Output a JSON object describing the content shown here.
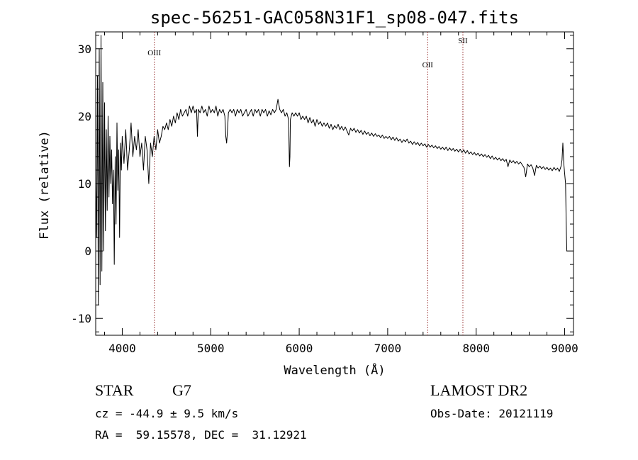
{
  "chart_data": {
    "type": "line",
    "title": "spec-56251-GAC058N31F1_sp08-047.fits",
    "xlabel": "Wavelength (Å)",
    "ylabel": "Flux (relative)",
    "xlim": [
      3700,
      9100
    ],
    "ylim": [
      -12.5,
      32.5
    ],
    "xticks": [
      4000,
      5000,
      6000,
      7000,
      8000,
      9000
    ],
    "yticks": [
      -10,
      0,
      10,
      20,
      30
    ],
    "grid": false,
    "series": [
      {
        "values": [
          [
            3700,
            10
          ],
          [
            3710,
            2
          ],
          [
            3720,
            26
          ],
          [
            3730,
            -8
          ],
          [
            3740,
            30
          ],
          [
            3750,
            -5
          ],
          [
            3760,
            32
          ],
          [
            3770,
            -3
          ],
          [
            3780,
            25
          ],
          [
            3790,
            0
          ],
          [
            3800,
            22
          ],
          [
            3810,
            3
          ],
          [
            3820,
            18
          ],
          [
            3830,
            6
          ],
          [
            3840,
            20
          ],
          [
            3850,
            8
          ],
          [
            3860,
            17
          ],
          [
            3870,
            10
          ],
          [
            3880,
            15
          ],
          [
            3890,
            7
          ],
          [
            3900,
            12
          ],
          [
            3910,
            -2
          ],
          [
            3920,
            14
          ],
          [
            3930,
            4
          ],
          [
            3940,
            19
          ],
          [
            3950,
            9
          ],
          [
            3960,
            15
          ],
          [
            3970,
            2
          ],
          [
            3980,
            16
          ],
          [
            3990,
            12
          ],
          [
            4000,
            17
          ],
          [
            4020,
            13
          ],
          [
            4040,
            18
          ],
          [
            4060,
            12
          ],
          [
            4080,
            15
          ],
          [
            4100,
            19
          ],
          [
            4120,
            14
          ],
          [
            4140,
            17
          ],
          [
            4160,
            15
          ],
          [
            4180,
            18
          ],
          [
            4200,
            14
          ],
          [
            4220,
            16
          ],
          [
            4240,
            12
          ],
          [
            4260,
            17
          ],
          [
            4280,
            15
          ],
          [
            4300,
            10
          ],
          [
            4320,
            16
          ],
          [
            4340,
            14
          ],
          [
            4360,
            17
          ],
          [
            4380,
            15
          ],
          [
            4400,
            18
          ],
          [
            4420,
            16
          ],
          [
            4440,
            17
          ],
          [
            4460,
            18.5
          ],
          [
            4480,
            18
          ],
          [
            4500,
            19
          ],
          [
            4520,
            18
          ],
          [
            4540,
            19.5
          ],
          [
            4560,
            18.5
          ],
          [
            4580,
            20
          ],
          [
            4600,
            19
          ],
          [
            4620,
            20.5
          ],
          [
            4640,
            19.5
          ],
          [
            4660,
            21
          ],
          [
            4680,
            20
          ],
          [
            4700,
            20.5
          ],
          [
            4720,
            21
          ],
          [
            4740,
            20
          ],
          [
            4760,
            21.5
          ],
          [
            4780,
            20.5
          ],
          [
            4800,
            21.5
          ],
          [
            4820,
            20.5
          ],
          [
            4840,
            21
          ],
          [
            4850,
            17
          ],
          [
            4860,
            21
          ],
          [
            4880,
            20.5
          ],
          [
            4900,
            21.5
          ],
          [
            4920,
            20.5
          ],
          [
            4940,
            21
          ],
          [
            4960,
            20
          ],
          [
            4980,
            21.5
          ],
          [
            5000,
            20.5
          ],
          [
            5020,
            21
          ],
          [
            5040,
            20.5
          ],
          [
            5060,
            21.5
          ],
          [
            5080,
            20
          ],
          [
            5100,
            21
          ],
          [
            5120,
            20.5
          ],
          [
            5140,
            21
          ],
          [
            5160,
            20
          ],
          [
            5170,
            17
          ],
          [
            5180,
            16
          ],
          [
            5190,
            18
          ],
          [
            5200,
            20.5
          ],
          [
            5220,
            21
          ],
          [
            5240,
            20.5
          ],
          [
            5260,
            21
          ],
          [
            5280,
            20
          ],
          [
            5300,
            21
          ],
          [
            5320,
            20.5
          ],
          [
            5340,
            21
          ],
          [
            5360,
            20
          ],
          [
            5380,
            20.5
          ],
          [
            5400,
            21
          ],
          [
            5420,
            20
          ],
          [
            5440,
            20.5
          ],
          [
            5460,
            21
          ],
          [
            5480,
            20
          ],
          [
            5500,
            21
          ],
          [
            5520,
            20.5
          ],
          [
            5540,
            21
          ],
          [
            5560,
            20
          ],
          [
            5580,
            21
          ],
          [
            5600,
            20.5
          ],
          [
            5620,
            21
          ],
          [
            5640,
            20
          ],
          [
            5660,
            20.8
          ],
          [
            5680,
            20.2
          ],
          [
            5700,
            21
          ],
          [
            5720,
            20.5
          ],
          [
            5740,
            21
          ],
          [
            5760,
            22.5
          ],
          [
            5780,
            21
          ],
          [
            5800,
            20.5
          ],
          [
            5820,
            21
          ],
          [
            5840,
            20
          ],
          [
            5860,
            20.5
          ],
          [
            5880,
            19.5
          ],
          [
            5890,
            12.5
          ],
          [
            5895,
            14
          ],
          [
            5900,
            19.5
          ],
          [
            5920,
            20.5
          ],
          [
            5940,
            20
          ],
          [
            5960,
            20.5
          ],
          [
            5980,
            20
          ],
          [
            6000,
            20.5
          ],
          [
            6020,
            19.5
          ],
          [
            6040,
            20
          ],
          [
            6060,
            19.5
          ],
          [
            6080,
            20
          ],
          [
            6100,
            19
          ],
          [
            6120,
            19.8
          ],
          [
            6140,
            19
          ],
          [
            6160,
            19.5
          ],
          [
            6180,
            18.5
          ],
          [
            6200,
            19.5
          ],
          [
            6220,
            18.8
          ],
          [
            6240,
            19.2
          ],
          [
            6260,
            18.5
          ],
          [
            6280,
            19
          ],
          [
            6300,
            18.5
          ],
          [
            6320,
            19
          ],
          [
            6340,
            18.2
          ],
          [
            6360,
            18.8
          ],
          [
            6380,
            18
          ],
          [
            6400,
            18.6
          ],
          [
            6420,
            18.2
          ],
          [
            6440,
            18.8
          ],
          [
            6460,
            18
          ],
          [
            6480,
            18.5
          ],
          [
            6500,
            17.9
          ],
          [
            6520,
            18.4
          ],
          [
            6540,
            17.8
          ],
          [
            6560,
            17.2
          ],
          [
            6580,
            18.2
          ],
          [
            6600,
            17.8
          ],
          [
            6620,
            18.2
          ],
          [
            6640,
            17.6
          ],
          [
            6660,
            18
          ],
          [
            6680,
            17.5
          ],
          [
            6700,
            17.9
          ],
          [
            6720,
            17.3
          ],
          [
            6740,
            17.8
          ],
          [
            6760,
            17.3
          ],
          [
            6780,
            17.6
          ],
          [
            6800,
            17.1
          ],
          [
            6820,
            17.5
          ],
          [
            6840,
            17
          ],
          [
            6860,
            17.4
          ],
          [
            6880,
            17
          ],
          [
            6900,
            17.2
          ],
          [
            6920,
            16.8
          ],
          [
            6940,
            17.2
          ],
          [
            6960,
            16.7
          ],
          [
            6980,
            17
          ],
          [
            7000,
            16.7
          ],
          [
            7020,
            17
          ],
          [
            7040,
            16.5
          ],
          [
            7060,
            16.9
          ],
          [
            7080,
            16.4
          ],
          [
            7100,
            16.8
          ],
          [
            7120,
            16.3
          ],
          [
            7140,
            16.6
          ],
          [
            7160,
            16.1
          ],
          [
            7180,
            16.5
          ],
          [
            7200,
            16.2
          ],
          [
            7220,
            16.6
          ],
          [
            7240,
            16
          ],
          [
            7260,
            16.3
          ],
          [
            7280,
            15.8
          ],
          [
            7300,
            16.2
          ],
          [
            7320,
            15.8
          ],
          [
            7340,
            16.1
          ],
          [
            7360,
            15.6
          ],
          [
            7380,
            16
          ],
          [
            7400,
            15.6
          ],
          [
            7420,
            15.9
          ],
          [
            7440,
            15.4
          ],
          [
            7460,
            15.8
          ],
          [
            7480,
            15.4
          ],
          [
            7500,
            15.7
          ],
          [
            7520,
            15.3
          ],
          [
            7540,
            15.6
          ],
          [
            7560,
            15.2
          ],
          [
            7580,
            15.5
          ],
          [
            7600,
            15.1
          ],
          [
            7620,
            15.4
          ],
          [
            7640,
            15
          ],
          [
            7660,
            15.4
          ],
          [
            7680,
            14.9
          ],
          [
            7700,
            15.3
          ],
          [
            7720,
            14.9
          ],
          [
            7740,
            15.2
          ],
          [
            7760,
            14.8
          ],
          [
            7780,
            15.1
          ],
          [
            7800,
            14.7
          ],
          [
            7820,
            15.1
          ],
          [
            7840,
            14.6
          ],
          [
            7860,
            15
          ],
          [
            7880,
            14.5
          ],
          [
            7900,
            14.9
          ],
          [
            7920,
            14.4
          ],
          [
            7940,
            14.7
          ],
          [
            7960,
            14.3
          ],
          [
            7980,
            14.6
          ],
          [
            8000,
            14.2
          ],
          [
            8020,
            14.5
          ],
          [
            8040,
            14.1
          ],
          [
            8060,
            14.4
          ],
          [
            8080,
            14
          ],
          [
            8100,
            14.3
          ],
          [
            8120,
            13.9
          ],
          [
            8140,
            14.2
          ],
          [
            8160,
            13.7
          ],
          [
            8180,
            14.1
          ],
          [
            8200,
            13.6
          ],
          [
            8220,
            13.9
          ],
          [
            8240,
            13.5
          ],
          [
            8260,
            13.8
          ],
          [
            8280,
            13.4
          ],
          [
            8300,
            13.7
          ],
          [
            8320,
            13.3
          ],
          [
            8340,
            13.6
          ],
          [
            8360,
            12.5
          ],
          [
            8380,
            13.5
          ],
          [
            8400,
            13.1
          ],
          [
            8420,
            13.4
          ],
          [
            8440,
            13
          ],
          [
            8460,
            13.3
          ],
          [
            8480,
            12.9
          ],
          [
            8500,
            13.2
          ],
          [
            8520,
            12.8
          ],
          [
            8540,
            12.4
          ],
          [
            8560,
            11
          ],
          [
            8580,
            12.9
          ],
          [
            8600,
            12.5
          ],
          [
            8620,
            12.8
          ],
          [
            8640,
            12.3
          ],
          [
            8660,
            11.2
          ],
          [
            8680,
            12.7
          ],
          [
            8700,
            12.3
          ],
          [
            8720,
            12.6
          ],
          [
            8740,
            12.2
          ],
          [
            8760,
            12.5
          ],
          [
            8780,
            12.1
          ],
          [
            8800,
            12.4
          ],
          [
            8820,
            12
          ],
          [
            8840,
            12.3
          ],
          [
            8860,
            11.9
          ],
          [
            8880,
            12.4
          ],
          [
            8900,
            12
          ],
          [
            8920,
            12.3
          ],
          [
            8940,
            11.8
          ],
          [
            8960,
            12.6
          ],
          [
            8970,
            13.5
          ],
          [
            8980,
            16
          ],
          [
            8990,
            13
          ],
          [
            9000,
            11.5
          ],
          [
            9010,
            10
          ],
          [
            9020,
            2.5
          ],
          [
            9025,
            0
          ]
        ]
      }
    ],
    "lines": [
      {
        "label": "OIII",
        "x": 4363
      },
      {
        "label": "OII",
        "x": 7452
      },
      {
        "label": "SII",
        "x": 7850
      }
    ]
  },
  "footer": {
    "object_type": "STAR",
    "subclass": "G7",
    "survey": "LAMOST DR2",
    "cz": "cz = -44.9 ± 9.5 km/s",
    "obs_date": "Obs-Date: 20121119",
    "coords": "RA =  59.15578, DEC =  31.12921"
  }
}
